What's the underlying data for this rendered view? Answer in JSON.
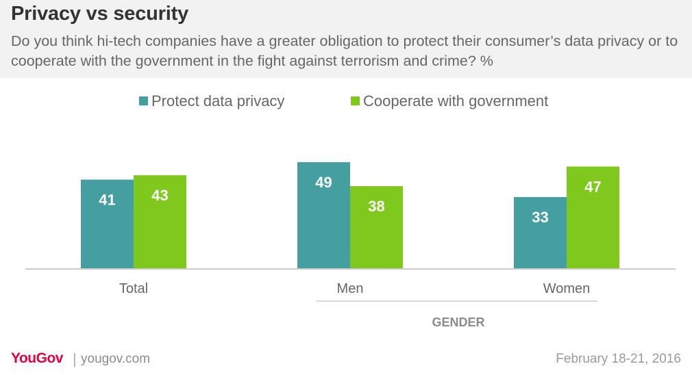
{
  "header": {
    "title": "Privacy vs security",
    "subtitle": "Do you think hi-tech companies have a greater obligation to protect their consumer’s data privacy or to cooperate with the government in the fight against terrorism and crime? %"
  },
  "colors": {
    "protect": "#459fa1",
    "cooperate": "#7fc91f",
    "brand": "#e4003b"
  },
  "chart_data": {
    "type": "bar",
    "title": "Privacy vs security",
    "categories": [
      "Total",
      "Men",
      "Women"
    ],
    "group_label": "GENDER",
    "series": [
      {
        "name": "Protect data privacy",
        "values": [
          41,
          49,
          33
        ]
      },
      {
        "name": "Cooperate with government",
        "values": [
          43,
          38,
          47
        ]
      }
    ],
    "ylim": [
      0,
      60
    ],
    "grid": false,
    "legend": "top-center",
    "data_labels": true
  },
  "footer": {
    "logo": "YouGov",
    "separator": "|",
    "site": "yougov.com",
    "date": "February 18-21, 2016"
  }
}
